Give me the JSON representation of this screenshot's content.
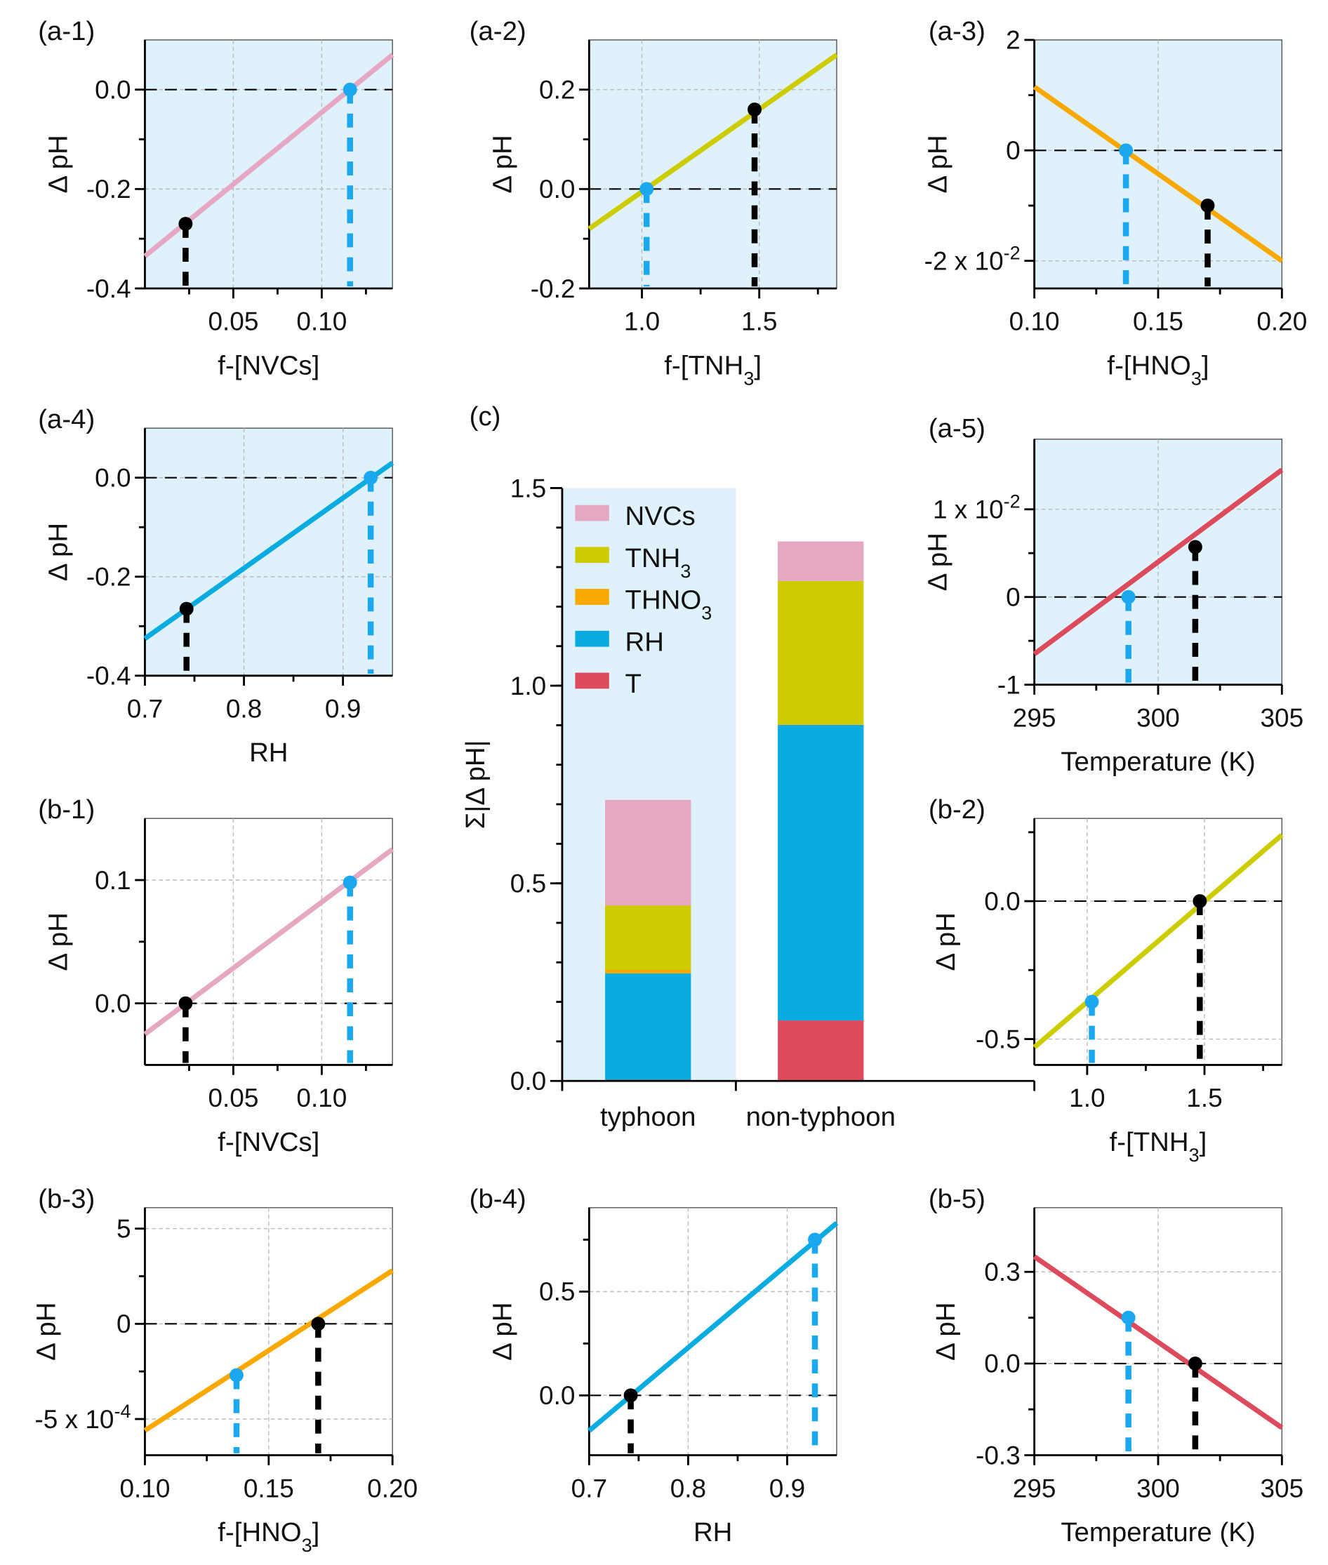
{
  "colors": {
    "NVCs": "#e6a7c2",
    "TNH3": "#cccc00",
    "THNO3": "#f9a800",
    "RH": "#09ace0",
    "T": "#dc4a5c",
    "target_point": "#1ba8ee",
    "base_point": "#000000",
    "typhoon_bg": "#dff1fb"
  },
  "chart_data": [
    {
      "id": "a1",
      "label": "(a-1)",
      "type": "line",
      "bg": "typhoon",
      "xlim": [
        0,
        0.14
      ],
      "ylim": [
        -0.4,
        0.1
      ],
      "xticks": [
        {
          "v": 0.05,
          "t": "0.05"
        },
        {
          "v": 0.1,
          "t": "0.10"
        }
      ],
      "xminor": [
        0.025,
        0.075,
        0.125
      ],
      "yticks": [
        {
          "v": 0,
          "t": "0.0"
        },
        {
          "v": -0.2,
          "t": "-0.2"
        },
        {
          "v": -0.4,
          "t": "-0.4"
        }
      ],
      "yminor": [
        -0.3,
        -0.1
      ],
      "xlabel": {
        "pre": "f-[NVCs]",
        "sub": "",
        "post": ""
      },
      "ylabel": "Δ pH",
      "series": {
        "color": "NVCs",
        "x": [
          0,
          0.14
        ],
        "y": [
          -0.335,
          0.07
        ]
      },
      "points": [
        {
          "x": 0.023,
          "y": -0.27,
          "kind": "base"
        },
        {
          "x": 0.116,
          "y": 0,
          "kind": "target"
        }
      ]
    },
    {
      "id": "a2",
      "label": "(a-2)",
      "type": "line",
      "bg": "typhoon",
      "xlim": [
        0.775,
        1.83
      ],
      "ylim": [
        -0.2,
        0.3
      ],
      "xticks": [
        {
          "v": 1.0,
          "t": "1.0"
        },
        {
          "v": 1.5,
          "t": "1.5"
        }
      ],
      "xminor": [
        1.25,
        1.75
      ],
      "yticks": [
        {
          "v": 0.2,
          "t": "0.2"
        },
        {
          "v": 0,
          "t": "0.0"
        },
        {
          "v": -0.2,
          "t": "-0.2"
        }
      ],
      "yminor": [
        0.1,
        -0.1
      ],
      "xlabel": {
        "pre": "f-[TNH",
        "sub": "3",
        "post": "]"
      },
      "ylabel": "Δ pH",
      "series": {
        "color": "TNH3",
        "x": [
          0.775,
          1.83
        ],
        "y": [
          -0.08,
          0.27
        ]
      },
      "points": [
        {
          "x": 1.02,
          "y": 0,
          "kind": "target"
        },
        {
          "x": 1.48,
          "y": 0.16,
          "kind": "base"
        }
      ]
    },
    {
      "id": "a3",
      "label": "(a-3)",
      "type": "line",
      "bg": "typhoon",
      "xlim": [
        0.1,
        0.2
      ],
      "ylim": [
        -2.5,
        2
      ],
      "xticks": [
        {
          "v": 0.1,
          "t": "0.10"
        },
        {
          "v": 0.15,
          "t": "0.15"
        },
        {
          "v": 0.2,
          "t": "0.20"
        }
      ],
      "xminor": [
        0.125,
        0.175
      ],
      "yticks": [
        {
          "v": 2,
          "t": "2"
        },
        {
          "v": 0,
          "t": "0"
        },
        {
          "v": -2,
          "t": "-2 x 10",
          "sup": "-2"
        }
      ],
      "yminor": [
        1,
        -1
      ],
      "xlabel": {
        "pre": "f-[HNO",
        "sub": "3",
        "post": "]"
      },
      "ylabel": "Δ pH",
      "series": {
        "color": "THNO3",
        "x": [
          0.1,
          0.2
        ],
        "y": [
          1.15,
          -2.0
        ]
      },
      "points": [
        {
          "x": 0.137,
          "y": 0,
          "kind": "target"
        },
        {
          "x": 0.17,
          "y": -1.0,
          "kind": "base"
        }
      ]
    },
    {
      "id": "a4",
      "label": "(a-4)",
      "type": "line",
      "bg": "typhoon",
      "xlim": [
        0.7,
        0.95
      ],
      "ylim": [
        -0.4,
        0.1
      ],
      "xticks": [
        {
          "v": 0.7,
          "t": "0.7"
        },
        {
          "v": 0.8,
          "t": "0.8"
        },
        {
          "v": 0.9,
          "t": "0.9"
        }
      ],
      "xminor": [
        0.75,
        0.85
      ],
      "yticks": [
        {
          "v": 0,
          "t": "0.0"
        },
        {
          "v": -0.2,
          "t": "-0.2"
        },
        {
          "v": -0.4,
          "t": "-0.4"
        }
      ],
      "yminor": [
        -0.3,
        -0.1
      ],
      "xlabel": {
        "pre": "RH",
        "sub": "",
        "post": ""
      },
      "ylabel": "Δ pH",
      "series": {
        "color": "RH",
        "x": [
          0.7,
          0.95
        ],
        "y": [
          -0.325,
          0.03
        ]
      },
      "points": [
        {
          "x": 0.742,
          "y": -0.265,
          "kind": "base"
        },
        {
          "x": 0.928,
          "y": 0,
          "kind": "target"
        }
      ]
    },
    {
      "id": "a5",
      "label": "(a-5)",
      "type": "line",
      "bg": "typhoon",
      "xlim": [
        295,
        305
      ],
      "ylim": [
        -1,
        1.8
      ],
      "xticks": [
        {
          "v": 295,
          "t": "295"
        },
        {
          "v": 300,
          "t": "300"
        },
        {
          "v": 305,
          "t": "305"
        }
      ],
      "xminor": [
        297.5,
        302.5
      ],
      "yticks": [
        {
          "v": 1,
          "t": "1 x 10",
          "sup": "-2"
        },
        {
          "v": 0,
          "t": "0"
        },
        {
          "v": -1,
          "t": "-1"
        }
      ],
      "yminor": [
        0.5,
        -0.5
      ],
      "xlabel": {
        "pre": "Temperature (K)",
        "sub": "",
        "post": ""
      },
      "ylabel": "Δ pH",
      "series": {
        "color": "T",
        "x": [
          295,
          305
        ],
        "y": [
          -0.65,
          1.45
        ]
      },
      "points": [
        {
          "x": 298.8,
          "y": 0,
          "kind": "target"
        },
        {
          "x": 301.5,
          "y": 0.57,
          "kind": "base"
        }
      ]
    },
    {
      "id": "b1",
      "label": "(b-1)",
      "type": "line",
      "bg": "none",
      "xlim": [
        0,
        0.14
      ],
      "ylim": [
        -0.05,
        0.15
      ],
      "xticks": [
        {
          "v": 0.05,
          "t": "0.05"
        },
        {
          "v": 0.1,
          "t": "0.10"
        }
      ],
      "xminor": [
        0.025,
        0.075,
        0.125
      ],
      "yticks": [
        {
          "v": 0.1,
          "t": "0.1"
        },
        {
          "v": 0,
          "t": "0.0"
        }
      ],
      "yminor": [
        0.05
      ],
      "xlabel": {
        "pre": "f-[NVCs]",
        "sub": "",
        "post": ""
      },
      "ylabel": "Δ pH",
      "series": {
        "color": "NVCs",
        "x": [
          0,
          0.14
        ],
        "y": [
          -0.025,
          0.125
        ]
      },
      "points": [
        {
          "x": 0.023,
          "y": 0,
          "kind": "base"
        },
        {
          "x": 0.116,
          "y": 0.098,
          "kind": "target"
        }
      ]
    },
    {
      "id": "b2",
      "label": "(b-2)",
      "type": "line",
      "bg": "none",
      "xlim": [
        0.775,
        1.83
      ],
      "ylim": [
        -0.594,
        0.3
      ],
      "xticks": [
        {
          "v": 1.0,
          "t": "1.0"
        },
        {
          "v": 1.5,
          "t": "1.5"
        }
      ],
      "xminor": [
        1.25,
        1.75
      ],
      "yticks": [
        {
          "v": 0,
          "t": "0.0"
        },
        {
          "v": -0.5,
          "t": "-0.5"
        }
      ],
      "yminor": [
        -0.25,
        0.25
      ],
      "xlabel": {
        "pre": "f-[TNH",
        "sub": "3",
        "post": "]"
      },
      "ylabel": "Δ pH",
      "series": {
        "color": "TNH3",
        "x": [
          0.775,
          1.83
        ],
        "y": [
          -0.53,
          0.24
        ]
      },
      "points": [
        {
          "x": 1.02,
          "y": -0.365,
          "kind": "target"
        },
        {
          "x": 1.48,
          "y": 0,
          "kind": "base"
        }
      ]
    },
    {
      "id": "b3",
      "label": "(b-3)",
      "type": "line",
      "bg": "none",
      "xlim": [
        0.1,
        0.2
      ],
      "ylim": [
        -6.9,
        6.1
      ],
      "xticks": [
        {
          "v": 0.1,
          "t": "0.10"
        },
        {
          "v": 0.15,
          "t": "0.15"
        },
        {
          "v": 0.2,
          "t": "0.20"
        }
      ],
      "xminor": [
        0.125,
        0.175
      ],
      "yticks": [
        {
          "v": 5,
          "t": "5"
        },
        {
          "v": 0,
          "t": "0"
        },
        {
          "v": -5,
          "t": "-5 x 10",
          "sup": "-4"
        }
      ],
      "yminor": [
        2.5,
        -2.5
      ],
      "xlabel": {
        "pre": "f-[HNO",
        "sub": "3",
        "post": "]"
      },
      "ylabel": "Δ pH",
      "series": {
        "color": "THNO3",
        "x": [
          0.1,
          0.2
        ],
        "y": [
          -5.6,
          2.8
        ]
      },
      "points": [
        {
          "x": 0.137,
          "y": -2.7,
          "kind": "target"
        },
        {
          "x": 0.17,
          "y": 0,
          "kind": "base"
        }
      ]
    },
    {
      "id": "b4",
      "label": "(b-4)",
      "type": "line",
      "bg": "none",
      "xlim": [
        0.7,
        0.95
      ],
      "ylim": [
        -0.288,
        0.904
      ],
      "xticks": [
        {
          "v": 0.7,
          "t": "0.7"
        },
        {
          "v": 0.8,
          "t": "0.8"
        },
        {
          "v": 0.9,
          "t": "0.9"
        }
      ],
      "xminor": [
        0.75,
        0.85
      ],
      "yticks": [
        {
          "v": 0.5,
          "t": "0.5"
        },
        {
          "v": 0,
          "t": "0.0"
        }
      ],
      "yminor": [
        0.25,
        0.75
      ],
      "xlabel": {
        "pre": "RH",
        "sub": "",
        "post": ""
      },
      "ylabel": "Δ pH",
      "series": {
        "color": "RH",
        "x": [
          0.7,
          0.95
        ],
        "y": [
          -0.17,
          0.83
        ]
      },
      "points": [
        {
          "x": 0.742,
          "y": 0,
          "kind": "base"
        },
        {
          "x": 0.928,
          "y": 0.75,
          "kind": "target"
        }
      ]
    },
    {
      "id": "b5",
      "label": "(b-5)",
      "type": "line",
      "bg": "none",
      "xlim": [
        295,
        305
      ],
      "ylim": [
        -0.3,
        0.51
      ],
      "xticks": [
        {
          "v": 295,
          "t": "295"
        },
        {
          "v": 300,
          "t": "300"
        },
        {
          "v": 305,
          "t": "305"
        }
      ],
      "xminor": [
        297.5,
        302.5
      ],
      "yticks": [
        {
          "v": 0.3,
          "t": "0.3"
        },
        {
          "v": 0,
          "t": "0.0"
        },
        {
          "v": -0.3,
          "t": "-0.3"
        }
      ],
      "yminor": [
        0.15,
        -0.15
      ],
      "xlabel": {
        "pre": "Temperature (K)",
        "sub": "",
        "post": ""
      },
      "ylabel": "Δ pH",
      "series": {
        "color": "T",
        "x": [
          295,
          305
        ],
        "y": [
          0.35,
          -0.21
        ]
      },
      "points": [
        {
          "x": 298.8,
          "y": 0.15,
          "kind": "target"
        },
        {
          "x": 301.5,
          "y": 0,
          "kind": "base"
        }
      ]
    },
    {
      "id": "c",
      "label": "(c)",
      "type": "bar",
      "stacked": true,
      "ylim": [
        0,
        1.5
      ],
      "ylabel": "Σ|Δ pH|",
      "yticks": [
        {
          "v": 0,
          "t": "0.0"
        },
        {
          "v": 0.5,
          "t": "0.5"
        },
        {
          "v": 1.0,
          "t": "1.0"
        },
        {
          "v": 1.5,
          "t": "1.5"
        }
      ],
      "categories": [
        "typhoon",
        "non-typhoon"
      ],
      "legend": {
        "placement": "top-left",
        "entries": [
          {
            "key": "NVCs",
            "pre": "NVCs",
            "sub": ""
          },
          {
            "key": "TNH3",
            "pre": "TNH",
            "sub": "3"
          },
          {
            "key": "THNO3",
            "pre": "THNO",
            "sub": "3"
          },
          {
            "key": "RH",
            "pre": "RH",
            "sub": ""
          },
          {
            "key": "T",
            "pre": "T",
            "sub": ""
          }
        ]
      },
      "stack_order": [
        "T",
        "RH",
        "THNO3",
        "TNH3",
        "NVCs"
      ],
      "series": [
        {
          "key": "T",
          "values": [
            0.003,
            0.153
          ]
        },
        {
          "key": "RH",
          "values": [
            0.269,
            0.748
          ]
        },
        {
          "key": "THNO3",
          "values": [
            0.009,
            0.001
          ]
        },
        {
          "key": "TNH3",
          "values": [
            0.163,
            0.363
          ]
        },
        {
          "key": "NVCs",
          "values": [
            0.267,
            0.1
          ]
        }
      ]
    }
  ]
}
